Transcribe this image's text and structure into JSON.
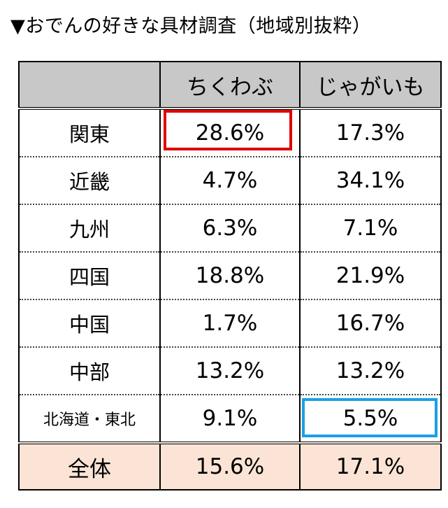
{
  "title": "▼おでんの好きな具材調査（地域別抜粋）",
  "table": {
    "headers": [
      "",
      "ちくわぶ",
      "じゃがいも"
    ],
    "rows": [
      {
        "region": "関東",
        "chikuwabu": "28.6%",
        "jagaimo": "17.3%"
      },
      {
        "region": "近畿",
        "chikuwabu": "4.7%",
        "jagaimo": "34.1%"
      },
      {
        "region": "九州",
        "chikuwabu": "6.3%",
        "jagaimo": "7.1%"
      },
      {
        "region": "四国",
        "chikuwabu": "18.8%",
        "jagaimo": "21.9%"
      },
      {
        "region": "中国",
        "chikuwabu": "1.7%",
        "jagaimo": "16.7%"
      },
      {
        "region": "中部",
        "chikuwabu": "13.2%",
        "jagaimo": "13.2%"
      },
      {
        "region": "北海道・東北",
        "chikuwabu": "9.1%",
        "jagaimo": "5.5%"
      }
    ],
    "total": {
      "region": "全体",
      "chikuwabu": "15.6%",
      "jagaimo": "17.1%"
    }
  },
  "colors": {
    "header_bg": "#c8c8c8",
    "total_bg": "#fbe4d5",
    "highlight_max": "#e00000",
    "highlight_min": "#1aa0e6"
  }
}
